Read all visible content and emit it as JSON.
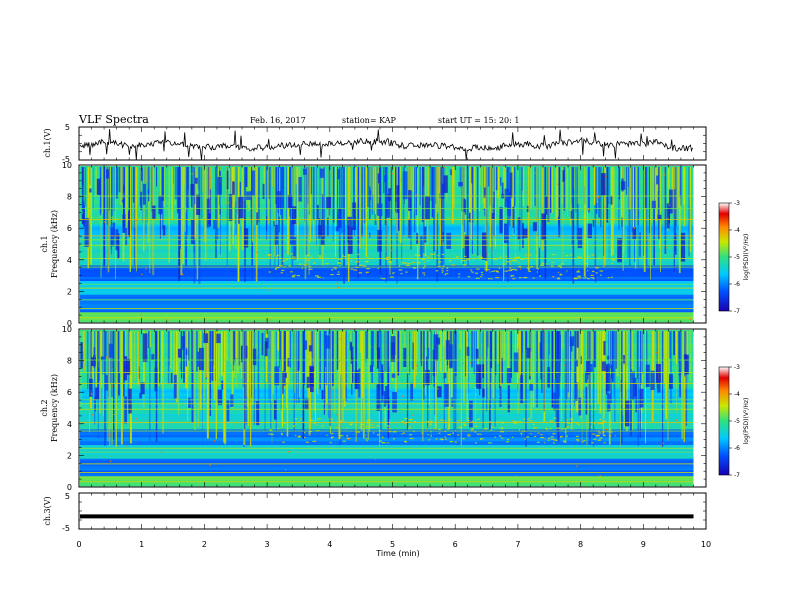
{
  "header": {
    "title": "VLF Spectra",
    "date": "Feb. 16, 2017",
    "station": "station= KAP",
    "start_ut": "start UT =   15: 20: 1"
  },
  "chart_data": [
    {
      "type": "line",
      "panel": "ch1-waveform",
      "ylabel": "ch.1(V)",
      "ylim": [
        -5,
        5
      ],
      "yticks": [
        "5",
        "-5"
      ],
      "xlim": [
        0,
        10
      ],
      "x_end_min": 9.8,
      "baseline_v": -0.5,
      "amplitude_v": 1.8,
      "color": "#000000"
    },
    {
      "type": "heatmap",
      "panel": "ch1-spectrogram",
      "ylabel": "ch.1\nFrequency (kHz)",
      "ylim": [
        0,
        10
      ],
      "yticks": [
        "0",
        "2",
        "4",
        "6",
        "8",
        "10"
      ],
      "xlim": [
        0,
        10
      ],
      "x_end_min": 9.8,
      "colorbar": {
        "label": "log(PSD)(V²/Hz)",
        "range": [
          -7,
          -3
        ],
        "ticks": [
          "-3",
          "-4",
          "-5",
          "-6",
          "-7"
        ]
      }
    },
    {
      "type": "heatmap",
      "panel": "ch2-spectrogram",
      "ylabel": "ch.2\nFrequency (kHz)",
      "ylim": [
        0,
        10
      ],
      "yticks": [
        "0",
        "2",
        "4",
        "6",
        "8",
        "10"
      ],
      "xlim": [
        0,
        10
      ],
      "x_end_min": 9.8,
      "colorbar": {
        "label": "log(PSD)(V²/Hz)",
        "range": [
          -7,
          -3
        ],
        "ticks": [
          "-3",
          "-4",
          "-5",
          "-6",
          "-7"
        ]
      }
    },
    {
      "type": "line",
      "panel": "ch3-waveform",
      "ylabel": "ch.3(V)",
      "ylim": [
        -5,
        5
      ],
      "yticks": [
        "5",
        "-5"
      ],
      "xlim": [
        0,
        10
      ],
      "x_end_min": 9.8,
      "baseline_v": -1.5,
      "color": "#000000"
    }
  ],
  "xaxis": {
    "label": "Time (min)",
    "ticks": [
      "0",
      "1",
      "2",
      "3",
      "4",
      "5",
      "6",
      "7",
      "8",
      "9",
      "10"
    ]
  },
  "colors": {
    "colormap": [
      "#1a00b0",
      "#0050ff",
      "#00c8ff",
      "#30e080",
      "#c8e800",
      "#ff8800",
      "#e00000",
      "#ffffff"
    ]
  }
}
